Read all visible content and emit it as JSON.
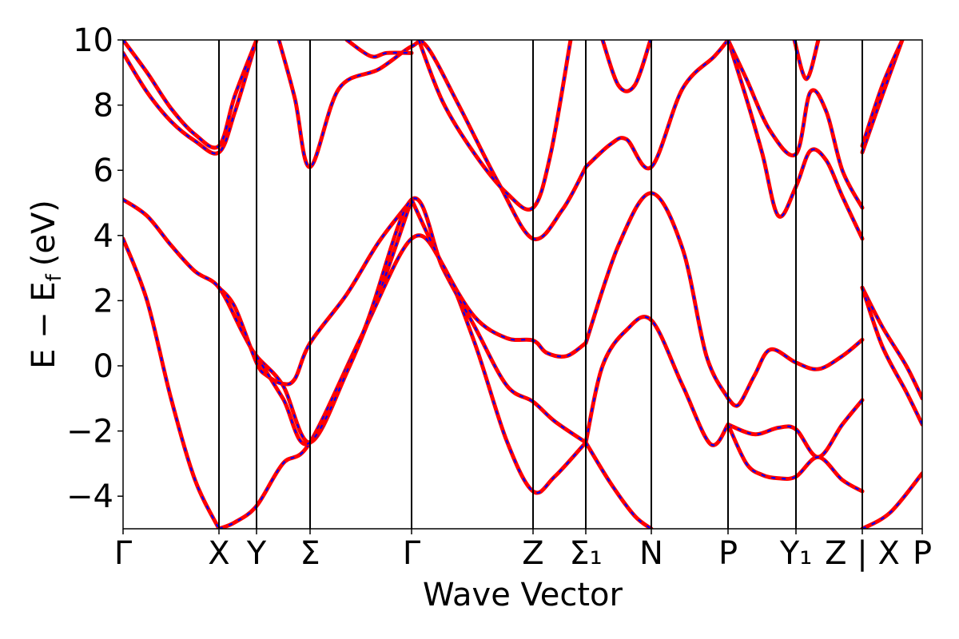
{
  "chart_data": {
    "type": "line",
    "title": "",
    "xlabel": "Wave Vector",
    "ylabel": "E − E_f (eV)",
    "ylabel_parts": {
      "main": "E − E",
      "sub": "f",
      "unit": "(eV)"
    },
    "ylim": [
      -5,
      10
    ],
    "yticks": [
      10,
      8,
      6,
      4,
      2,
      0,
      -2,
      -4
    ],
    "ytick_labels": [
      "10",
      "8",
      "6",
      "4",
      "2",
      "0",
      "−2",
      "−4"
    ],
    "xlim": [
      0,
      1
    ],
    "grid": false,
    "legend": "none",
    "high_symmetry_points": [
      {
        "label": "Γ",
        "x": 0.0
      },
      {
        "label": "X",
        "x": 0.12
      },
      {
        "label": "Y",
        "x": 0.167
      },
      {
        "label": "Σ",
        "x": 0.234
      },
      {
        "label": "Γ",
        "x": 0.361
      },
      {
        "label": "Z",
        "x": 0.513
      },
      {
        "label": "Σ₁",
        "x": 0.579
      },
      {
        "label": "N",
        "x": 0.661
      },
      {
        "label": "P",
        "x": 0.757
      },
      {
        "label": "Y₁",
        "x": 0.842
      },
      {
        "label": "Z | X",
        "x": 0.925
      },
      {
        "label": "P",
        "x": 1.0
      }
    ],
    "colors": {
      "red": "#ff0000",
      "blue": "#0000ff",
      "axis": "#000000"
    },
    "series": [
      {
        "x": [
          0.0,
          0.03,
          0.06,
          0.09,
          0.12
        ],
        "y": [
          3.9,
          2.0,
          -1.0,
          -3.5,
          -5.0
        ]
      },
      {
        "x": [
          0.0,
          0.03,
          0.06,
          0.09,
          0.12,
          0.15,
          0.167,
          0.2,
          0.234,
          0.28,
          0.32,
          0.361
        ],
        "y": [
          5.1,
          4.6,
          3.7,
          2.9,
          2.4,
          1.0,
          0.3,
          -0.6,
          -2.35,
          -0.2,
          2.2,
          5.1
        ]
      },
      {
        "x": [
          0.12,
          0.14,
          0.167,
          0.2,
          0.234,
          0.3,
          0.361,
          0.4,
          0.44,
          0.48,
          0.513,
          0.54,
          0.579
        ],
        "y": [
          -5.0,
          -4.8,
          -4.3,
          -3.0,
          -2.35,
          1.0,
          3.9,
          3.1,
          0.7,
          -2.3,
          -3.85,
          -3.4,
          -2.35
        ]
      },
      {
        "x": [
          0.12,
          0.14,
          0.167,
          0.18,
          0.2,
          0.215,
          0.234,
          0.28,
          0.32,
          0.361
        ],
        "y": [
          2.4,
          1.8,
          0.1,
          -0.3,
          -0.55,
          -0.4,
          0.7,
          2.2,
          3.8,
          5.1
        ]
      },
      {
        "x": [
          0.167,
          0.2,
          0.234,
          0.3,
          0.361,
          0.4,
          0.44,
          0.48,
          0.513,
          0.54,
          0.579
        ],
        "y": [
          0.3,
          -1.0,
          -2.35,
          1.0,
          5.1,
          3.0,
          1.2,
          -0.6,
          -1.1,
          -1.7,
          -2.35
        ]
      },
      {
        "x": [
          0.361,
          0.4,
          0.44,
          0.48,
          0.513,
          0.53,
          0.555,
          0.579
        ],
        "y": [
          5.1,
          3.1,
          1.5,
          0.85,
          0.78,
          0.4,
          0.3,
          0.7
        ]
      },
      {
        "x": [
          0.579,
          0.62,
          0.661,
          0.7,
          0.73,
          0.757
        ],
        "y": [
          0.7,
          3.7,
          5.3,
          3.6,
          0.3,
          -1.0
        ]
      },
      {
        "x": [
          0.579,
          0.6,
          0.63,
          0.661,
          0.7,
          0.735,
          0.757
        ],
        "y": [
          -2.35,
          0.0,
          1.1,
          1.4,
          -0.6,
          -2.4,
          -1.8
        ]
      },
      {
        "x": [
          0.579,
          0.61,
          0.64,
          0.661
        ],
        "y": [
          -2.35,
          -3.6,
          -4.6,
          -5.0
        ]
      },
      {
        "x": [
          0.757,
          0.77,
          0.79,
          0.81,
          0.842,
          0.87,
          0.9,
          0.925
        ],
        "y": [
          -1.0,
          -1.2,
          -0.3,
          0.5,
          0.1,
          -0.1,
          0.3,
          0.8
        ]
      },
      {
        "x": [
          0.757,
          0.79,
          0.82,
          0.842,
          0.87,
          0.9,
          0.925
        ],
        "y": [
          -1.8,
          -2.1,
          -1.9,
          -1.95,
          -2.8,
          -1.8,
          -1.05
        ]
      },
      {
        "x": [
          0.757,
          0.78,
          0.8,
          0.82,
          0.842,
          0.87,
          0.9,
          0.925
        ],
        "y": [
          -1.8,
          -3.0,
          -3.35,
          -3.45,
          -3.4,
          -2.8,
          -3.5,
          -3.85
        ]
      },
      {
        "x": [
          0.925,
          0.95,
          0.98,
          1.0
        ],
        "y": [
          2.4,
          1.2,
          0.0,
          -1.0
        ]
      },
      {
        "x": [
          0.925,
          0.95,
          0.98,
          1.0
        ],
        "y": [
          2.4,
          0.6,
          -0.8,
          -1.8
        ]
      },
      {
        "x": [
          0.925,
          0.96,
          1.0
        ],
        "y": [
          -5.0,
          -4.5,
          -3.3
        ]
      },
      {
        "x": [
          0.0,
          0.03,
          0.06,
          0.09,
          0.12,
          0.14,
          0.167
        ],
        "y": [
          9.6,
          8.4,
          7.5,
          6.9,
          6.55,
          7.8,
          10.0
        ]
      },
      {
        "x": [
          0.0,
          0.03,
          0.06,
          0.09,
          0.12,
          0.14,
          0.167
        ],
        "y": [
          10.0,
          9.0,
          7.9,
          7.1,
          6.75,
          8.3,
          10.0
        ]
      },
      {
        "x": [
          0.195,
          0.215,
          0.234,
          0.27,
          0.32,
          0.361,
          0.38,
          0.42,
          0.47,
          0.513,
          0.55,
          0.579
        ],
        "y": [
          10.0,
          8.2,
          6.1,
          8.5,
          9.1,
          9.8,
          9.8,
          8.0,
          5.6,
          3.9,
          4.8,
          6.1
        ]
      },
      {
        "x": [
          0.28,
          0.31,
          0.33,
          0.361
        ],
        "y": [
          10.0,
          9.5,
          9.6,
          9.6
        ]
      },
      {
        "x": [
          0.37,
          0.4,
          0.44,
          0.48,
          0.513,
          0.535,
          0.56
        ],
        "y": [
          10.0,
          8.1,
          6.5,
          5.3,
          4.85,
          6.5,
          10.0
        ]
      },
      {
        "x": [
          0.579,
          0.61,
          0.63,
          0.661,
          0.7,
          0.74,
          0.757
        ],
        "y": [
          6.1,
          6.8,
          6.95,
          6.1,
          8.5,
          9.5,
          10.0
        ]
      },
      {
        "x": [
          0.6,
          0.62,
          0.64,
          0.66
        ],
        "y": [
          10.0,
          8.6,
          8.6,
          10.0
        ]
      },
      {
        "x": [
          0.757,
          0.78,
          0.8,
          0.82,
          0.842,
          0.86,
          0.88,
          0.9,
          0.925
        ],
        "y": [
          10.0,
          8.2,
          6.5,
          4.6,
          5.5,
          6.6,
          6.3,
          5.2,
          3.9
        ]
      },
      {
        "x": [
          0.757,
          0.78,
          0.81,
          0.842,
          0.86,
          0.88,
          0.9,
          0.925
        ],
        "y": [
          10.0,
          8.8,
          7.2,
          6.5,
          8.4,
          7.8,
          6.0,
          4.85
        ]
      },
      {
        "x": [
          0.84,
          0.855,
          0.87
        ],
        "y": [
          10.0,
          8.8,
          10.0
        ]
      },
      {
        "x": [
          0.925,
          0.95,
          0.975
        ],
        "y": [
          6.55,
          8.3,
          10.0
        ]
      },
      {
        "x": [
          0.925,
          0.95,
          0.975
        ],
        "y": [
          6.75,
          8.6,
          10.0
        ]
      }
    ]
  }
}
